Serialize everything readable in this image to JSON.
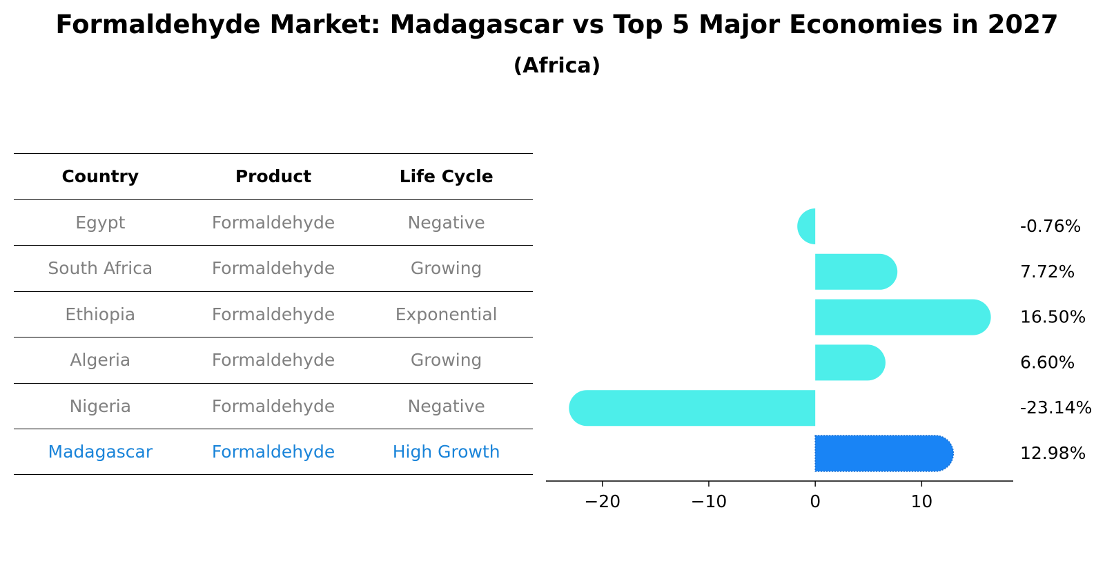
{
  "title": "Formaldehyde Market: Madagascar vs Top 5 Major Economies in 2027",
  "subtitle": "(Africa)",
  "table": {
    "headers": [
      "Country",
      "Product",
      "Life Cycle"
    ],
    "rows": [
      [
        "Egypt",
        "Formaldehyde",
        "Negative"
      ],
      [
        "South Africa",
        "Formaldehyde",
        "Growing"
      ],
      [
        "Ethiopia",
        "Formaldehyde",
        "Exponential"
      ],
      [
        "Algeria",
        "Formaldehyde",
        "Growing"
      ],
      [
        "Nigeria",
        "Formaldehyde",
        "Negative"
      ],
      [
        "Madagascar",
        "Formaldehyde",
        "High Growth"
      ]
    ]
  },
  "colors": {
    "bar": "#4deeea",
    "highlight": "#1984f5",
    "highlight_text": "#1a84d9",
    "muted_text": "#808080"
  },
  "chart_data": {
    "type": "bar",
    "orientation": "horizontal",
    "categories": [
      "Egypt",
      "South Africa",
      "Ethiopia",
      "Algeria",
      "Nigeria",
      "Madagascar"
    ],
    "values": [
      -0.76,
      7.72,
      16.5,
      6.6,
      -23.14,
      12.98
    ],
    "labels": [
      "-0.76%",
      "7.72%",
      "16.50%",
      "6.60%",
      "-23.14%",
      "12.98%"
    ],
    "highlight": "Madagascar",
    "xlim": [
      -25.3,
      18.6
    ],
    "xticks": [
      -20,
      -10,
      0,
      10
    ],
    "xtick_labels": [
      "−20",
      "−10",
      "0",
      "10"
    ],
    "xlabel": "",
    "ylabel": "",
    "grid": false
  }
}
